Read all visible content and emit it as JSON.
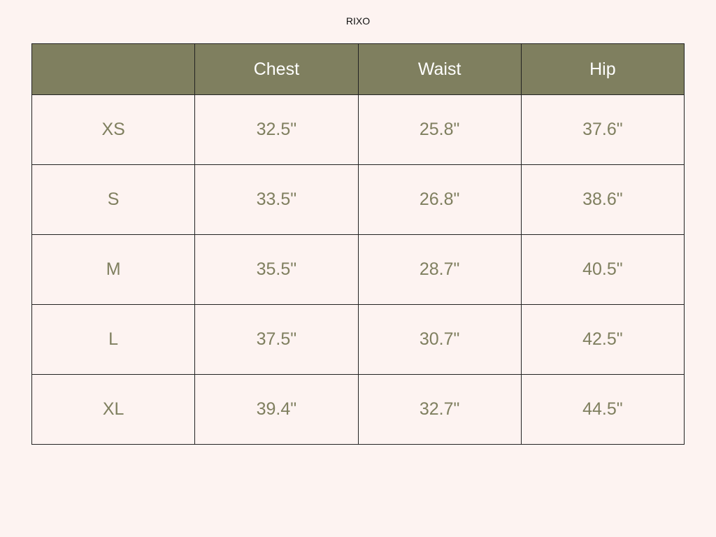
{
  "brand": "RIXO",
  "colors": {
    "header_bg": "#7f7f5f",
    "text": "#7f7f5f",
    "background": "#fdf3f1"
  },
  "table": {
    "headers": [
      "",
      "Chest",
      "Waist",
      "Hip"
    ],
    "rows": [
      [
        "XS",
        "32.5\"",
        "25.8\"",
        "37.6\""
      ],
      [
        "S",
        "33.5\"",
        "26.8\"",
        "38.6\""
      ],
      [
        "M",
        "35.5\"",
        "28.7\"",
        "40.5\""
      ],
      [
        "L",
        "37.5\"",
        "30.7\"",
        "42.5\""
      ],
      [
        "XL",
        "39.4\"",
        "32.7\"",
        "44.5\""
      ]
    ]
  }
}
